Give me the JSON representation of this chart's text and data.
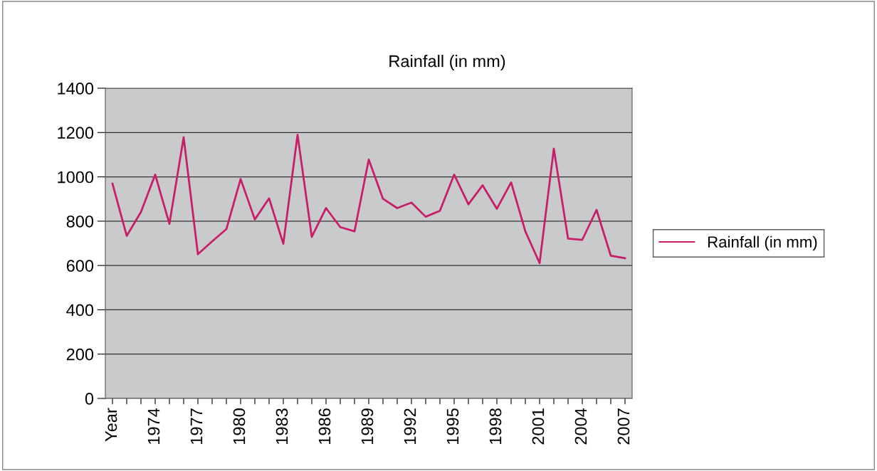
{
  "chart_data": {
    "type": "line",
    "title": "Rainfall (in mm)",
    "categories": [
      "Year",
      null,
      null,
      "1974",
      null,
      null,
      "1977",
      null,
      null,
      "1980",
      null,
      null,
      "1983",
      null,
      null,
      "1986",
      null,
      null,
      "1989",
      null,
      null,
      "1992",
      null,
      null,
      "1995",
      null,
      null,
      "1998",
      null,
      null,
      "2001",
      null,
      null,
      "2004",
      null,
      null,
      "2007"
    ],
    "series": [
      {
        "name": "Rainfall (in mm)",
        "color": "#c81e6a",
        "values": [
          969,
          734,
          841,
          1010,
          788,
          1179,
          651,
          709,
          764,
          990,
          808,
          903,
          698,
          1190,
          729,
          859,
          773,
          754,
          1078,
          901,
          859,
          884,
          820,
          847,
          1010,
          876,
          962,
          856,
          975,
          754,
          611,
          1127,
          721,
          716,
          851,
          644,
          633
        ]
      }
    ],
    "ylim": [
      0,
      1400
    ],
    "yticks": [
      0,
      200,
      400,
      600,
      800,
      1000,
      1200,
      1400
    ],
    "grid": "y",
    "legend": "right",
    "marker": "none",
    "line_style": "solid"
  }
}
